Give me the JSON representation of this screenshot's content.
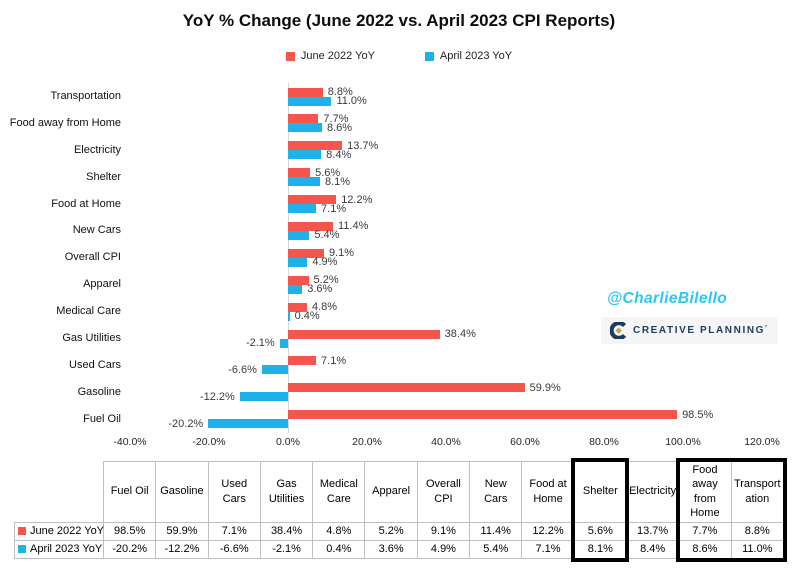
{
  "title": "YoY % Change (June 2022 vs. April 2023 CPI Reports)",
  "colors": {
    "june_red": "#f4564e",
    "april_blue": "#1fb2e8",
    "zero_line": "#d6d6d6",
    "table_border": "#bfbfbf",
    "highlight_box": "#000000",
    "watermark_blue": "#2bc7f5",
    "logo_navy": "#1c3c5e",
    "logo_gold": "#c6a15b"
  },
  "watermark": {
    "handle": "@CharlieBilello",
    "brand": "CREATIVE PLANNING",
    "brand_mark": "’"
  },
  "chart_data": {
    "type": "bar",
    "orientation": "horizontal",
    "title": "YoY % Change (June 2022 vs. April 2023 CPI Reports)",
    "legend_position": "top",
    "grid": "zero-line-only",
    "categories": [
      "Transportation",
      "Food away from Home",
      "Electricity",
      "Shelter",
      "Food at Home",
      "New Cars",
      "Overall CPI",
      "Apparel",
      "Medical Care",
      "Gas Utilities",
      "Used Cars",
      "Gasoline",
      "Fuel Oil"
    ],
    "series": [
      {
        "name": "June 2022 YoY",
        "color": "#f4564e",
        "values": [
          8.8,
          7.7,
          13.7,
          5.6,
          12.2,
          11.4,
          9.1,
          5.2,
          4.8,
          38.4,
          7.1,
          59.9,
          98.5
        ]
      },
      {
        "name": "April 2023 YoY",
        "color": "#1fb2e8",
        "values": [
          11.0,
          8.6,
          8.4,
          8.1,
          7.1,
          5.4,
          4.9,
          3.6,
          0.4,
          -2.1,
          -6.6,
          -12.2,
          -20.2
        ]
      }
    ],
    "xlim": [
      -40,
      120
    ],
    "x_tick_values": [
      -40,
      -20,
      0,
      20,
      40,
      60,
      80,
      100,
      120
    ],
    "x_ticks": [
      "-40.0%",
      "-20.0%",
      "0.0%",
      "20.0%",
      "40.0%",
      "60.0%",
      "80.0%",
      "100.0%",
      "120.0%"
    ],
    "value_suffix": "%"
  },
  "table": {
    "columns": [
      "Fuel Oil",
      "Gasoline",
      "Used Cars",
      "Gas Utilities",
      "Medical Care",
      "Apparel",
      "Overall CPI",
      "New Cars",
      "Food at Home",
      "Shelter",
      "Electricity",
      "Food away from Home",
      "Transportation"
    ],
    "rows": [
      {
        "label": "June 2022 YoY",
        "swatch": "#f4564e",
        "values": [
          "98.5%",
          "59.9%",
          "7.1%",
          "38.4%",
          "4.8%",
          "5.2%",
          "9.1%",
          "11.4%",
          "12.2%",
          "5.6%",
          "13.7%",
          "7.7%",
          "8.8%"
        ]
      },
      {
        "label": "April 2023 YoY",
        "swatch": "#1fb2e8",
        "values": [
          "-20.2%",
          "-12.2%",
          "-6.6%",
          "-2.1%",
          "0.4%",
          "3.6%",
          "4.9%",
          "5.4%",
          "7.1%",
          "8.1%",
          "8.4%",
          "8.6%",
          "11.0%"
        ]
      }
    ],
    "highlight_boxes": [
      {
        "columns": [
          "Shelter"
        ]
      },
      {
        "columns": [
          "Food away from Home",
          "Transportation"
        ]
      }
    ]
  }
}
